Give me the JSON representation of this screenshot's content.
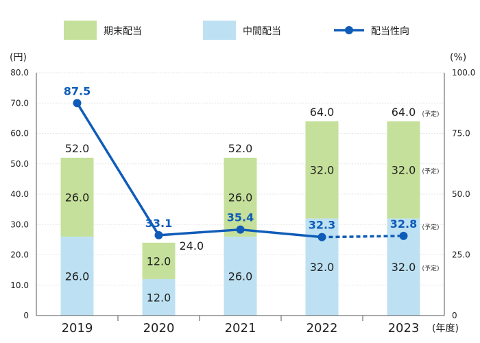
{
  "legend": {
    "items": [
      {
        "label": "期末配当",
        "color": "#c5e09a",
        "kind": "swatch"
      },
      {
        "label": "中間配当",
        "color": "#bde1f2",
        "kind": "swatch"
      },
      {
        "label": "配当性向",
        "color": "#0f5cb8",
        "kind": "line-marker"
      }
    ]
  },
  "chart_data": {
    "type": "bar",
    "stacked": true,
    "categories": [
      "2019",
      "2020",
      "2021",
      "2022",
      "2023"
    ],
    "xlabel": "(年度)",
    "y_left": {
      "unit_label": "(円)",
      "ylim": [
        0,
        80
      ],
      "ticks": [
        "0",
        "10.0",
        "20.0",
        "30.0",
        "40.0",
        "50.0",
        "60.0",
        "70.0",
        "80.0"
      ]
    },
    "y_right": {
      "unit_label": "(%)",
      "ylim": [
        0,
        100
      ],
      "ticks": [
        "0",
        "25.0",
        "50.0",
        "75.0",
        "100.0"
      ]
    },
    "grid": true,
    "series": [
      {
        "name": "中間配当",
        "type": "bar",
        "axis": "left",
        "color": "#bde1f2",
        "values": [
          26.0,
          12.0,
          26.0,
          32.0,
          32.0
        ],
        "labels": [
          "26.0",
          "12.0",
          "26.0",
          "32.0",
          "32.0"
        ]
      },
      {
        "name": "期末配当",
        "type": "bar",
        "axis": "left",
        "color": "#c5e09a",
        "values": [
          26.0,
          12.0,
          26.0,
          32.0,
          32.0
        ],
        "labels": [
          "26.0",
          "12.0",
          "26.0",
          "32.0",
          "32.0"
        ]
      },
      {
        "name": "配当性向",
        "type": "line",
        "axis": "right",
        "color": "#0f5cb8",
        "values": [
          87.5,
          33.1,
          35.4,
          32.3,
          32.8
        ],
        "labels": [
          "87.5",
          "33.1",
          "35.4",
          "32.3",
          "32.8"
        ],
        "dashed_last_segment": true
      }
    ],
    "totals": {
      "values": [
        52.0,
        24.0,
        52.0,
        64.0,
        64.0
      ],
      "labels": [
        "52.0",
        "24.0",
        "52.0",
        "64.0",
        "64.0"
      ]
    },
    "forecast_note": "(予定)"
  }
}
